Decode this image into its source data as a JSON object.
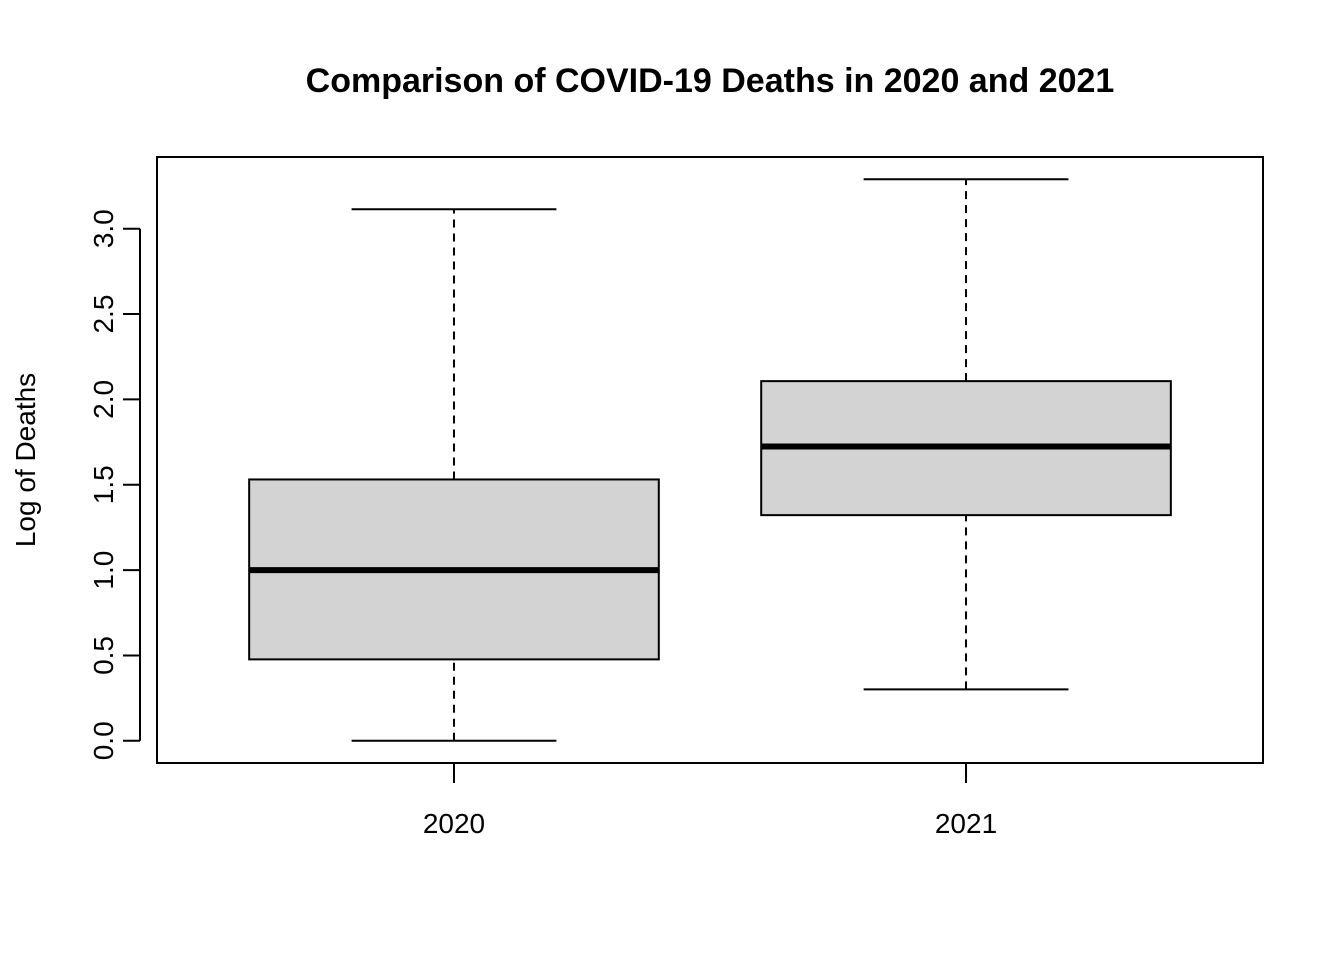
{
  "chart_data": {
    "type": "box",
    "title": "Comparison of COVID-19 Deaths in 2020 and 2021",
    "xlabel": "",
    "ylabel": "Log of Deaths",
    "ylim": [
      -0.13,
      3.42
    ],
    "y_ticks": [
      "0.0",
      "0.5",
      "1.0",
      "1.5",
      "2.0",
      "2.5",
      "3.0"
    ],
    "grid": false,
    "box_fill": "#d3d3d3",
    "line_color": "#000000",
    "categories": [
      "2020",
      "2021"
    ],
    "boxes": [
      {
        "category": "2020",
        "whisker_low": 0.0,
        "q1": 0.477,
        "median": 1.0,
        "q3": 1.531,
        "whisker_high": 3.114
      },
      {
        "category": "2021",
        "whisker_low": 0.301,
        "q1": 1.322,
        "median": 1.724,
        "q3": 2.107,
        "whisker_high": 3.29
      }
    ]
  }
}
